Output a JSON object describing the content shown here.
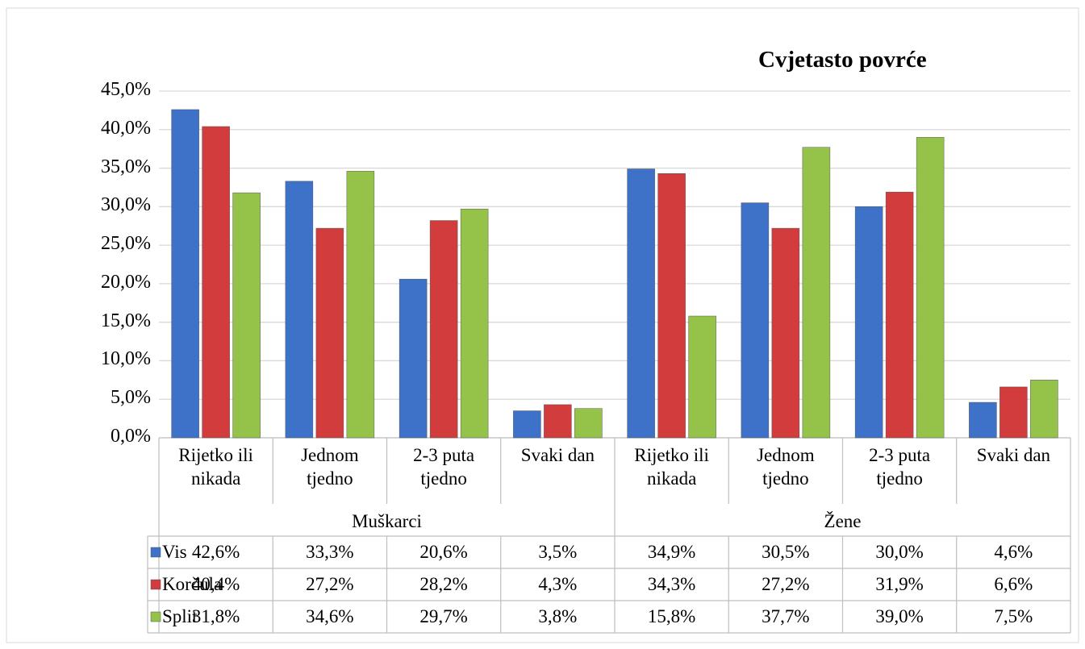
{
  "chart_data": {
    "type": "bar",
    "title": "Cvjetasto povrće",
    "groups": [
      "Muškarci",
      "Žene"
    ],
    "categories": [
      "Rijetko ili nikada",
      "Jednom tjedno",
      "2-3 puta tjedno",
      "Svaki dan",
      "Rijetko ili nikada",
      "Jednom tjedno",
      "2-3 puta tjedno",
      "Svaki dan"
    ],
    "series": [
      {
        "name": "Vis",
        "color": "#3d72c8",
        "values": [
          42.6,
          33.3,
          20.6,
          3.5,
          34.9,
          30.5,
          30.0,
          4.6
        ],
        "value_labels": [
          "42,6%",
          "33,3%",
          "20,6%",
          "3,5%",
          "34,9%",
          "30,5%",
          "30,0%",
          "4,6%"
        ]
      },
      {
        "name": "Korčula",
        "color": "#d23c3c",
        "values": [
          40.4,
          27.2,
          28.2,
          4.3,
          34.3,
          27.2,
          31.9,
          6.6
        ],
        "value_labels": [
          "40,4%",
          "27,2%",
          "28,2%",
          "4,3%",
          "34,3%",
          "27,2%",
          "31,9%",
          "6,6%"
        ]
      },
      {
        "name": "Split",
        "color": "#95c34a",
        "values": [
          31.8,
          34.6,
          29.7,
          3.8,
          15.8,
          37.7,
          39.0,
          7.5
        ],
        "value_labels": [
          "31,8%",
          "34,6%",
          "29,7%",
          "3,8%",
          "15,8%",
          "37,7%",
          "39,0%",
          "7,5%"
        ]
      }
    ],
    "ylim": [
      0,
      45
    ],
    "yticks": [
      {
        "value": 0,
        "label": "0,0%"
      },
      {
        "value": 5,
        "label": "5,0%"
      },
      {
        "value": 10,
        "label": "10,0%"
      },
      {
        "value": 15,
        "label": "15,0%"
      },
      {
        "value": 20,
        "label": "20,0%"
      },
      {
        "value": 25,
        "label": "25,0%"
      },
      {
        "value": 30,
        "label": "30,0%"
      },
      {
        "value": 35,
        "label": "35,0%"
      },
      {
        "value": 40,
        "label": "40,0%"
      },
      {
        "value": 45,
        "label": "45,0%"
      }
    ],
    "grid": true
  }
}
